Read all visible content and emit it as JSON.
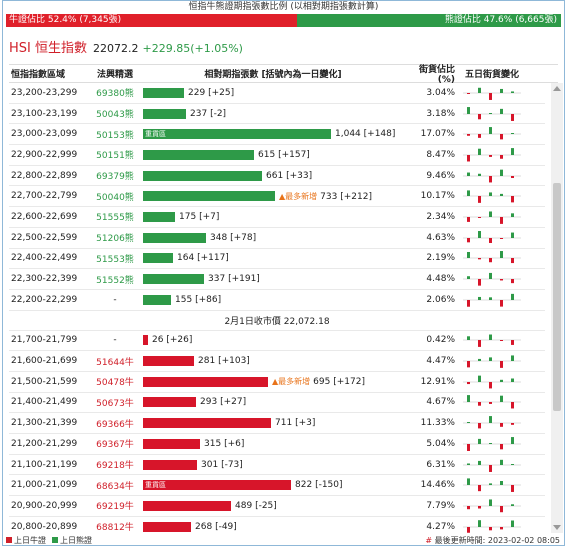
{
  "title": "恒指牛熊證期指張數比例 (以相對期指張數計算)",
  "ratio": {
    "bull_label": "牛證佔比 52.4% (7,345張)",
    "bear_label": "熊證佔比 47.6% (6,665張)",
    "bull_pct": 52.4,
    "bear_pct": 47.6
  },
  "index": {
    "name": "HSI 恒生指數",
    "value": "22072.2",
    "change": "+229.85(+1.05%)"
  },
  "headers": {
    "range": "恒指指數區域",
    "code": "法興精選",
    "bar": "相對期指張數 [括號內為一日變化]",
    "pct": "街貨佔比(%)",
    "spark": "五日街貨變化"
  },
  "bear_rows": [
    {
      "range": "23,200-23,299",
      "code": "69380熊",
      "qty": 229,
      "qty_text": "229",
      "chg": "[+25]",
      "pct": "3.04%",
      "label": "",
      "flag": ""
    },
    {
      "range": "23,100-23,199",
      "code": "50043熊",
      "qty": 237,
      "qty_text": "237",
      "chg": "[-2]",
      "pct": "3.18%",
      "label": "",
      "flag": ""
    },
    {
      "range": "23,000-23,099",
      "code": "50153熊",
      "qty": 1044,
      "qty_text": "1,044",
      "chg": "[+148]",
      "pct": "17.07%",
      "label": "重貨區",
      "flag": ""
    },
    {
      "range": "22,900-22,999",
      "code": "50151熊",
      "qty": 615,
      "qty_text": "615",
      "chg": "[+157]",
      "pct": "8.47%",
      "label": "",
      "flag": ""
    },
    {
      "range": "22,800-22,899",
      "code": "69379熊",
      "qty": 661,
      "qty_text": "661",
      "chg": "[+33]",
      "pct": "9.46%",
      "label": "",
      "flag": ""
    },
    {
      "range": "22,700-22,799",
      "code": "50040熊",
      "qty": 733,
      "qty_text": "733",
      "chg": "[+212]",
      "pct": "10.17%",
      "label": "",
      "flag": "▲最多新增"
    },
    {
      "range": "22,600-22,699",
      "code": "51555熊",
      "qty": 175,
      "qty_text": "175",
      "chg": "[+7]",
      "pct": "2.34%",
      "label": "",
      "flag": ""
    },
    {
      "range": "22,500-22,599",
      "code": "51206熊",
      "qty": 348,
      "qty_text": "348",
      "chg": "[+78]",
      "pct": "4.63%",
      "label": "",
      "flag": ""
    },
    {
      "range": "22,400-22,499",
      "code": "51553熊",
      "qty": 164,
      "qty_text": "164",
      "chg": "[+117]",
      "pct": "2.19%",
      "label": "",
      "flag": ""
    },
    {
      "range": "22,300-22,399",
      "code": "51552熊",
      "qty": 337,
      "qty_text": "337",
      "chg": "[+191]",
      "pct": "4.48%",
      "label": "",
      "flag": ""
    },
    {
      "range": "22,200-22,299",
      "code": "-",
      "qty": 155,
      "qty_text": "155",
      "chg": "[+86]",
      "pct": "2.06%",
      "label": "",
      "flag": ""
    }
  ],
  "mid_text": "2月1日收市價 22,072.18",
  "bull_rows": [
    {
      "range": "21,700-21,799",
      "code": "-",
      "qty": 26,
      "qty_text": "26",
      "chg": "[+26]",
      "pct": "0.42%",
      "label": "",
      "flag": ""
    },
    {
      "range": "21,600-21,699",
      "code": "51644牛",
      "qty": 281,
      "qty_text": "281",
      "chg": "[+103]",
      "pct": "4.47%",
      "label": "",
      "flag": ""
    },
    {
      "range": "21,500-21,599",
      "code": "50478牛",
      "qty": 695,
      "qty_text": "695",
      "chg": "[+172]",
      "pct": "12.91%",
      "label": "",
      "flag": "▲最多新增"
    },
    {
      "range": "21,400-21,499",
      "code": "50673牛",
      "qty": 293,
      "qty_text": "293",
      "chg": "[+27]",
      "pct": "4.67%",
      "label": "",
      "flag": ""
    },
    {
      "range": "21,300-21,399",
      "code": "69366牛",
      "qty": 711,
      "qty_text": "711",
      "chg": "[+3]",
      "pct": "11.33%",
      "label": "",
      "flag": ""
    },
    {
      "range": "21,200-21,299",
      "code": "69367牛",
      "qty": 315,
      "qty_text": "315",
      "chg": "[+6]",
      "pct": "5.04%",
      "label": "",
      "flag": ""
    },
    {
      "range": "21,100-21,199",
      "code": "69218牛",
      "qty": 301,
      "qty_text": "301",
      "chg": "[-73]",
      "pct": "6.31%",
      "label": "",
      "flag": ""
    },
    {
      "range": "21,000-21,099",
      "code": "68634牛",
      "qty": 822,
      "qty_text": "822",
      "chg": "[-150]",
      "pct": "14.46%",
      "label": "重貨區",
      "flag": ""
    },
    {
      "range": "20,900-20,999",
      "code": "69219牛",
      "qty": 489,
      "qty_text": "489",
      "chg": "[-25]",
      "pct": "7.79%",
      "label": "",
      "flag": ""
    },
    {
      "range": "20,800-20,899",
      "code": "68812牛",
      "qty": 268,
      "qty_text": "268",
      "chg": "[-49]",
      "pct": "4.27%",
      "label": "",
      "flag": ""
    }
  ],
  "footer": {
    "bull_legend": "上日牛證",
    "bear_legend": "上日熊證",
    "update": "最後更新時間: 2023-02-02 08:05"
  },
  "colors": {
    "bull": "#d7152a",
    "bear": "#2e9a48"
  }
}
